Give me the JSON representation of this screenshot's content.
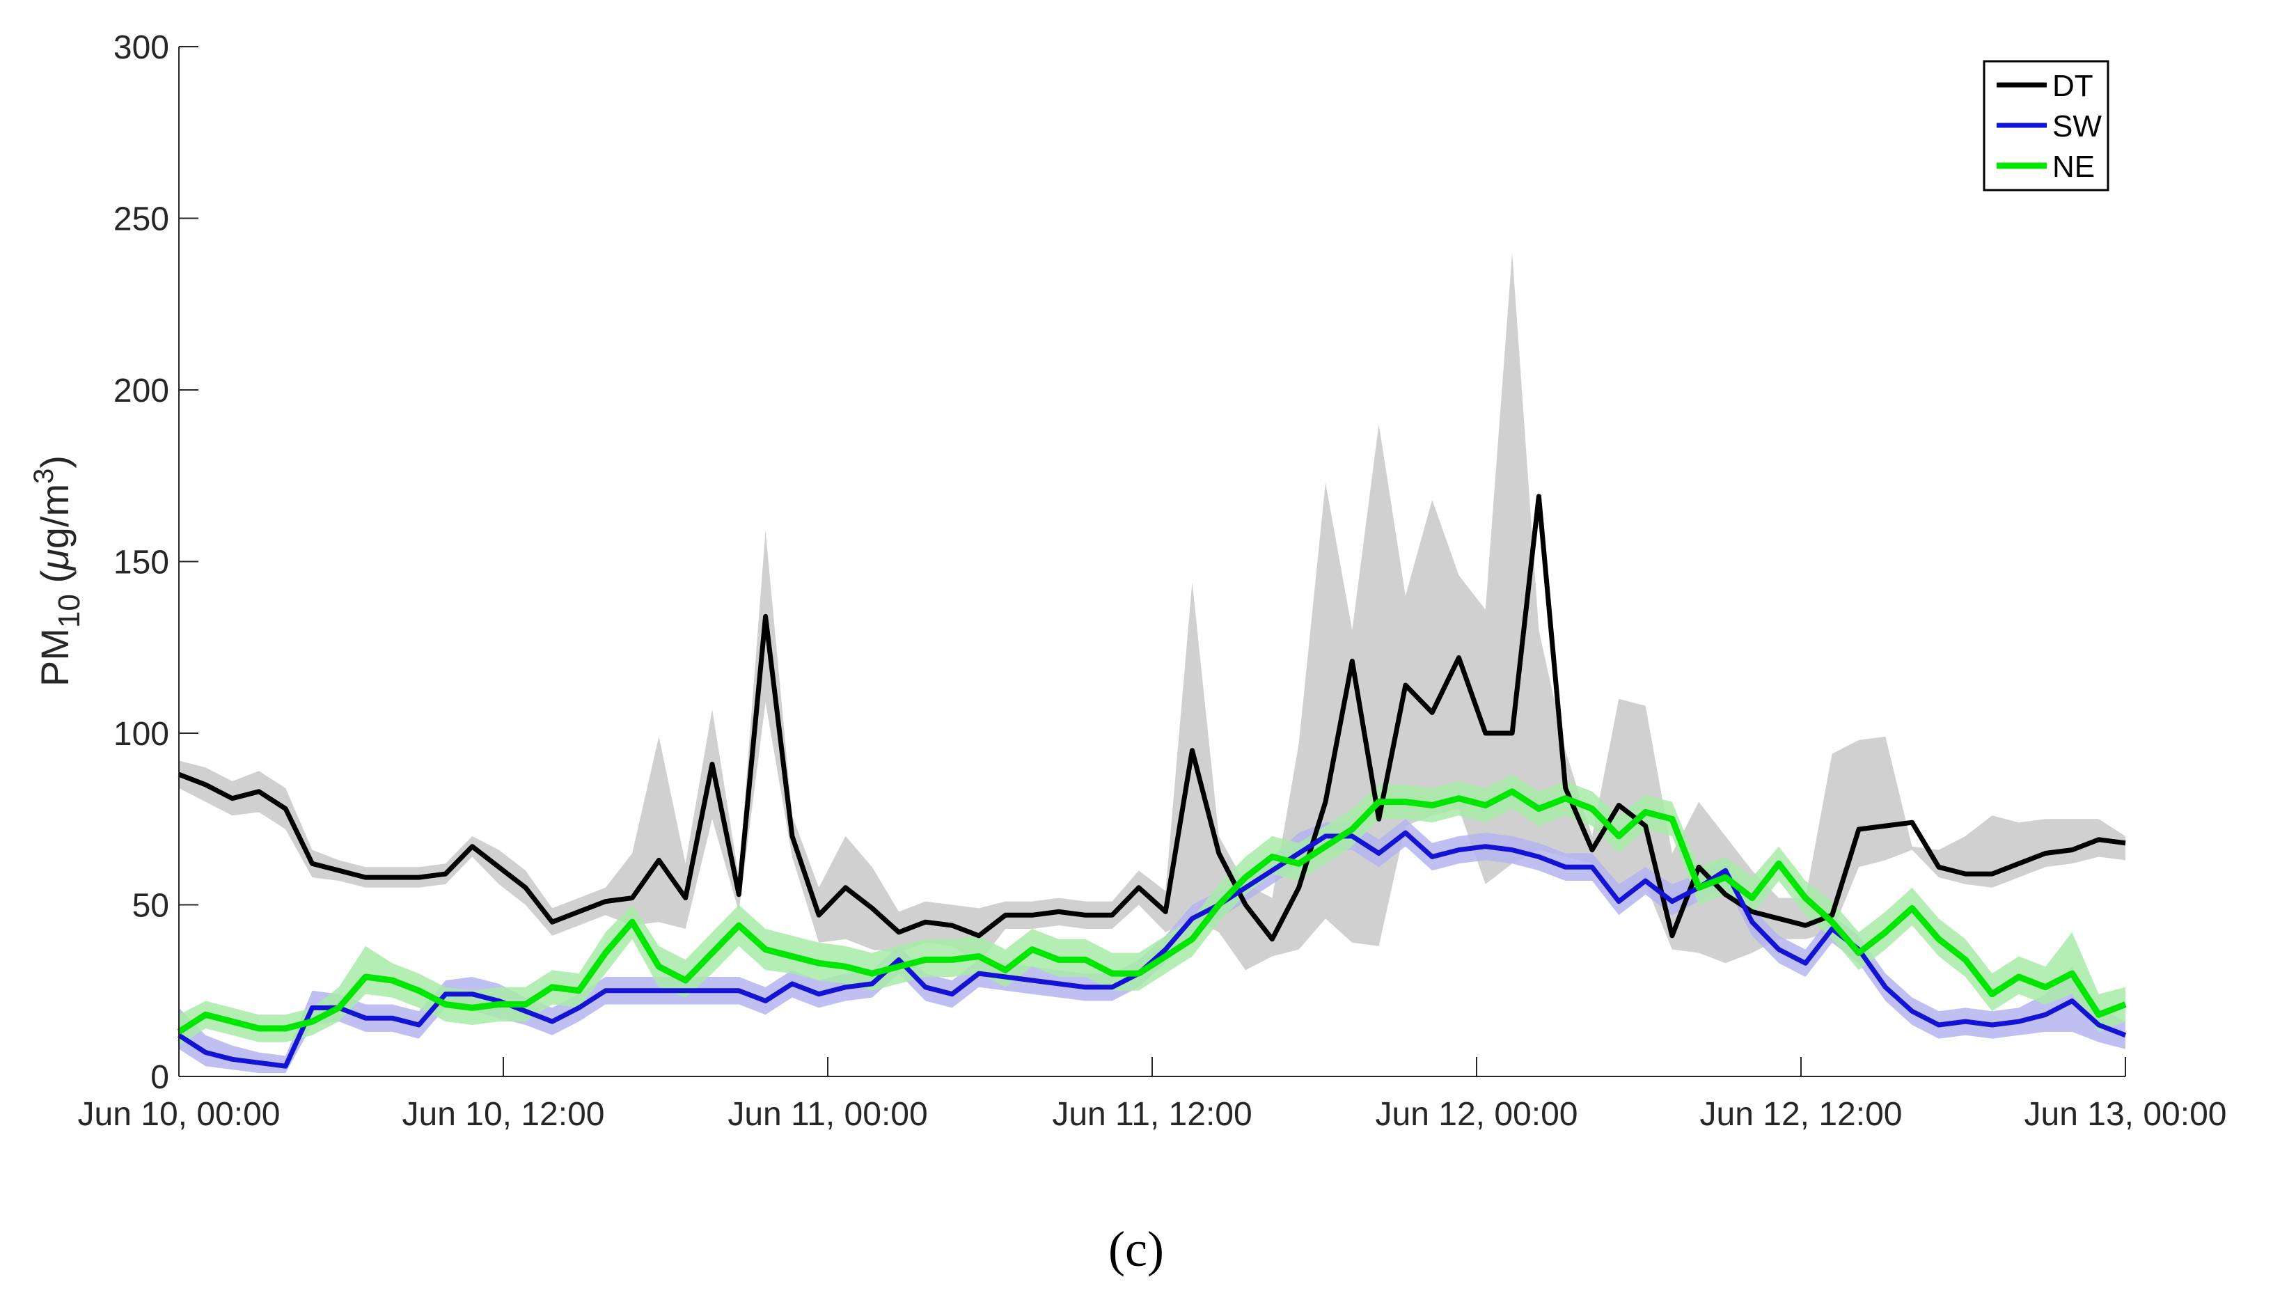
{
  "chart_data": {
    "type": "line",
    "title": "",
    "panel_label": "(c)",
    "xlabel": "",
    "ylabel": {
      "prefix": "PM",
      "sub": "10",
      "unit_pre": " (",
      "mu": "μ",
      "unit_mid": "g/m",
      "sup": "3",
      "unit_post": ")"
    },
    "ylim": [
      0,
      300
    ],
    "yticks": [
      0,
      50,
      100,
      150,
      200,
      250,
      300
    ],
    "x_hours_range": [
      0,
      72
    ],
    "xticks": [
      {
        "hour": 0,
        "label": "Jun 10, 00:00"
      },
      {
        "hour": 12,
        "label": "Jun 10, 12:00"
      },
      {
        "hour": 24,
        "label": "Jun 11, 00:00"
      },
      {
        "hour": 36,
        "label": "Jun 11, 12:00"
      },
      {
        "hour": 48,
        "label": "Jun 12, 00:00"
      },
      {
        "hour": 60,
        "label": "Jun 12, 12:00"
      },
      {
        "hour": 72,
        "label": "Jun 13, 00:00"
      }
    ],
    "legend": {
      "position": "top-right"
    },
    "series": [
      {
        "name": "DT",
        "color": "#000000",
        "band_color": "#c8c8c8",
        "values": [
          88,
          85,
          81,
          83,
          78,
          62,
          60,
          58,
          58,
          58,
          59,
          67,
          61,
          55,
          45,
          48,
          51,
          52,
          63,
          52,
          91,
          53,
          134,
          70,
          47,
          55,
          49,
          42,
          45,
          44,
          41,
          47,
          47,
          48,
          47,
          47,
          55,
          48,
          95,
          65,
          50,
          40,
          55,
          80,
          121,
          75,
          114,
          106,
          122,
          100,
          100,
          169,
          84,
          66,
          79,
          73,
          41,
          61,
          53,
          48,
          46,
          44,
          47,
          72,
          73,
          74,
          61,
          59,
          59,
          62,
          65,
          66,
          69,
          68
        ],
        "band_upper": [
          92,
          90,
          86,
          89,
          84,
          66,
          63,
          61,
          61,
          61,
          62,
          70,
          66,
          60,
          49,
          52,
          55,
          65,
          99,
          62,
          107,
          58,
          159,
          76,
          55,
          70,
          61,
          48,
          51,
          50,
          49,
          51,
          51,
          52,
          51,
          51,
          60,
          54,
          144,
          70,
          56,
          52,
          97,
          173,
          130,
          190,
          140,
          168,
          146,
          136,
          240,
          130,
          95,
          70,
          110,
          108,
          65,
          80,
          70,
          60,
          52,
          52,
          94,
          98,
          99,
          67,
          66,
          70,
          76,
          74,
          75,
          75,
          75,
          70
        ],
        "band_lower": [
          84,
          80,
          76,
          77,
          72,
          58,
          57,
          55,
          55,
          55,
          56,
          64,
          56,
          50,
          41,
          44,
          47,
          44,
          45,
          43,
          75,
          48,
          109,
          64,
          39,
          40,
          37,
          36,
          39,
          38,
          33,
          43,
          43,
          44,
          43,
          43,
          50,
          42,
          46,
          42,
          31,
          35,
          37,
          46,
          39,
          38,
          73,
          76,
          78,
          56,
          62,
          66,
          64,
          62,
          52,
          56,
          37,
          36,
          33,
          36,
          40,
          40,
          42,
          61,
          63,
          66,
          58,
          56,
          55,
          58,
          61,
          62,
          64,
          63
        ]
      },
      {
        "name": "SW",
        "color": "#1313d4",
        "band_color": "#b4b4f0",
        "values": [
          12,
          7,
          5,
          4,
          3,
          20,
          20,
          17,
          17,
          15,
          24,
          24,
          22,
          19,
          16,
          20,
          25,
          25,
          25,
          25,
          25,
          25,
          22,
          27,
          24,
          26,
          27,
          34,
          26,
          24,
          30,
          29,
          28,
          27,
          26,
          26,
          30,
          37,
          46,
          50,
          55,
          60,
          65,
          70,
          70,
          65,
          71,
          64,
          66,
          67,
          66,
          64,
          61,
          61,
          51,
          57,
          51,
          55,
          60,
          45,
          37,
          33,
          43,
          37,
          26,
          19,
          15,
          16,
          15,
          16,
          18,
          22,
          15,
          12
        ],
        "band_upper": [
          20,
          12,
          9,
          7,
          6,
          25,
          24,
          21,
          21,
          19,
          28,
          29,
          27,
          23,
          20,
          24,
          29,
          29,
          29,
          29,
          29,
          29,
          26,
          31,
          28,
          30,
          31,
          38,
          30,
          28,
          34,
          33,
          32,
          31,
          30,
          30,
          34,
          41,
          50,
          54,
          59,
          64,
          71,
          74,
          74,
          69,
          75,
          68,
          70,
          71,
          70,
          68,
          65,
          65,
          56,
          61,
          56,
          59,
          64,
          49,
          41,
          37,
          47,
          41,
          30,
          23,
          19,
          20,
          19,
          20,
          24,
          32,
          20,
          16
        ],
        "band_lower": [
          8,
          3,
          2,
          1,
          1,
          15,
          16,
          13,
          13,
          11,
          20,
          19,
          17,
          15,
          12,
          16,
          21,
          21,
          21,
          21,
          21,
          21,
          18,
          23,
          20,
          22,
          23,
          30,
          22,
          20,
          26,
          25,
          24,
          23,
          22,
          22,
          26,
          33,
          42,
          46,
          51,
          56,
          61,
          66,
          66,
          61,
          67,
          60,
          62,
          63,
          62,
          60,
          57,
          57,
          47,
          53,
          47,
          51,
          56,
          41,
          33,
          29,
          39,
          33,
          22,
          15,
          11,
          12,
          11,
          12,
          13,
          13,
          10,
          8
        ]
      },
      {
        "name": "NE",
        "color": "#00e600",
        "band_color": "#a8eba8",
        "values": [
          13,
          18,
          16,
          14,
          14,
          16,
          20,
          29,
          28,
          25,
          21,
          20,
          21,
          21,
          26,
          25,
          36,
          45,
          32,
          28,
          36,
          44,
          37,
          35,
          33,
          32,
          30,
          32,
          34,
          34,
          35,
          31,
          37,
          34,
          34,
          30,
          30,
          35,
          40,
          50,
          58,
          64,
          62,
          67,
          72,
          80,
          80,
          79,
          81,
          79,
          83,
          78,
          81,
          78,
          70,
          77,
          75,
          55,
          58,
          52,
          62,
          52,
          45,
          36,
          42,
          49,
          40,
          34,
          24,
          29,
          26,
          30,
          18,
          21
        ],
        "band_upper": [
          18,
          22,
          20,
          18,
          18,
          20,
          26,
          38,
          33,
          30,
          26,
          25,
          26,
          26,
          31,
          30,
          42,
          50,
          38,
          34,
          42,
          50,
          43,
          41,
          39,
          38,
          36,
          38,
          40,
          40,
          41,
          37,
          43,
          40,
          40,
          36,
          36,
          41,
          46,
          56,
          64,
          70,
          68,
          73,
          78,
          85,
          85,
          84,
          86,
          84,
          88,
          83,
          86,
          83,
          76,
          82,
          80,
          61,
          64,
          58,
          67,
          57,
          51,
          42,
          48,
          55,
          46,
          40,
          30,
          35,
          32,
          42,
          24,
          26
        ],
        "band_lower": [
          9,
          14,
          12,
          10,
          10,
          12,
          16,
          24,
          23,
          20,
          16,
          15,
          16,
          16,
          21,
          20,
          30,
          40,
          26,
          23,
          30,
          38,
          31,
          30,
          28,
          27,
          25,
          27,
          29,
          29,
          30,
          26,
          32,
          29,
          29,
          25,
          25,
          30,
          35,
          45,
          53,
          59,
          57,
          62,
          67,
          75,
          75,
          74,
          76,
          74,
          78,
          73,
          76,
          73,
          65,
          72,
          70,
          50,
          53,
          47,
          57,
          47,
          40,
          31,
          37,
          44,
          35,
          29,
          19,
          24,
          21,
          24,
          13,
          16
        ]
      }
    ]
  }
}
